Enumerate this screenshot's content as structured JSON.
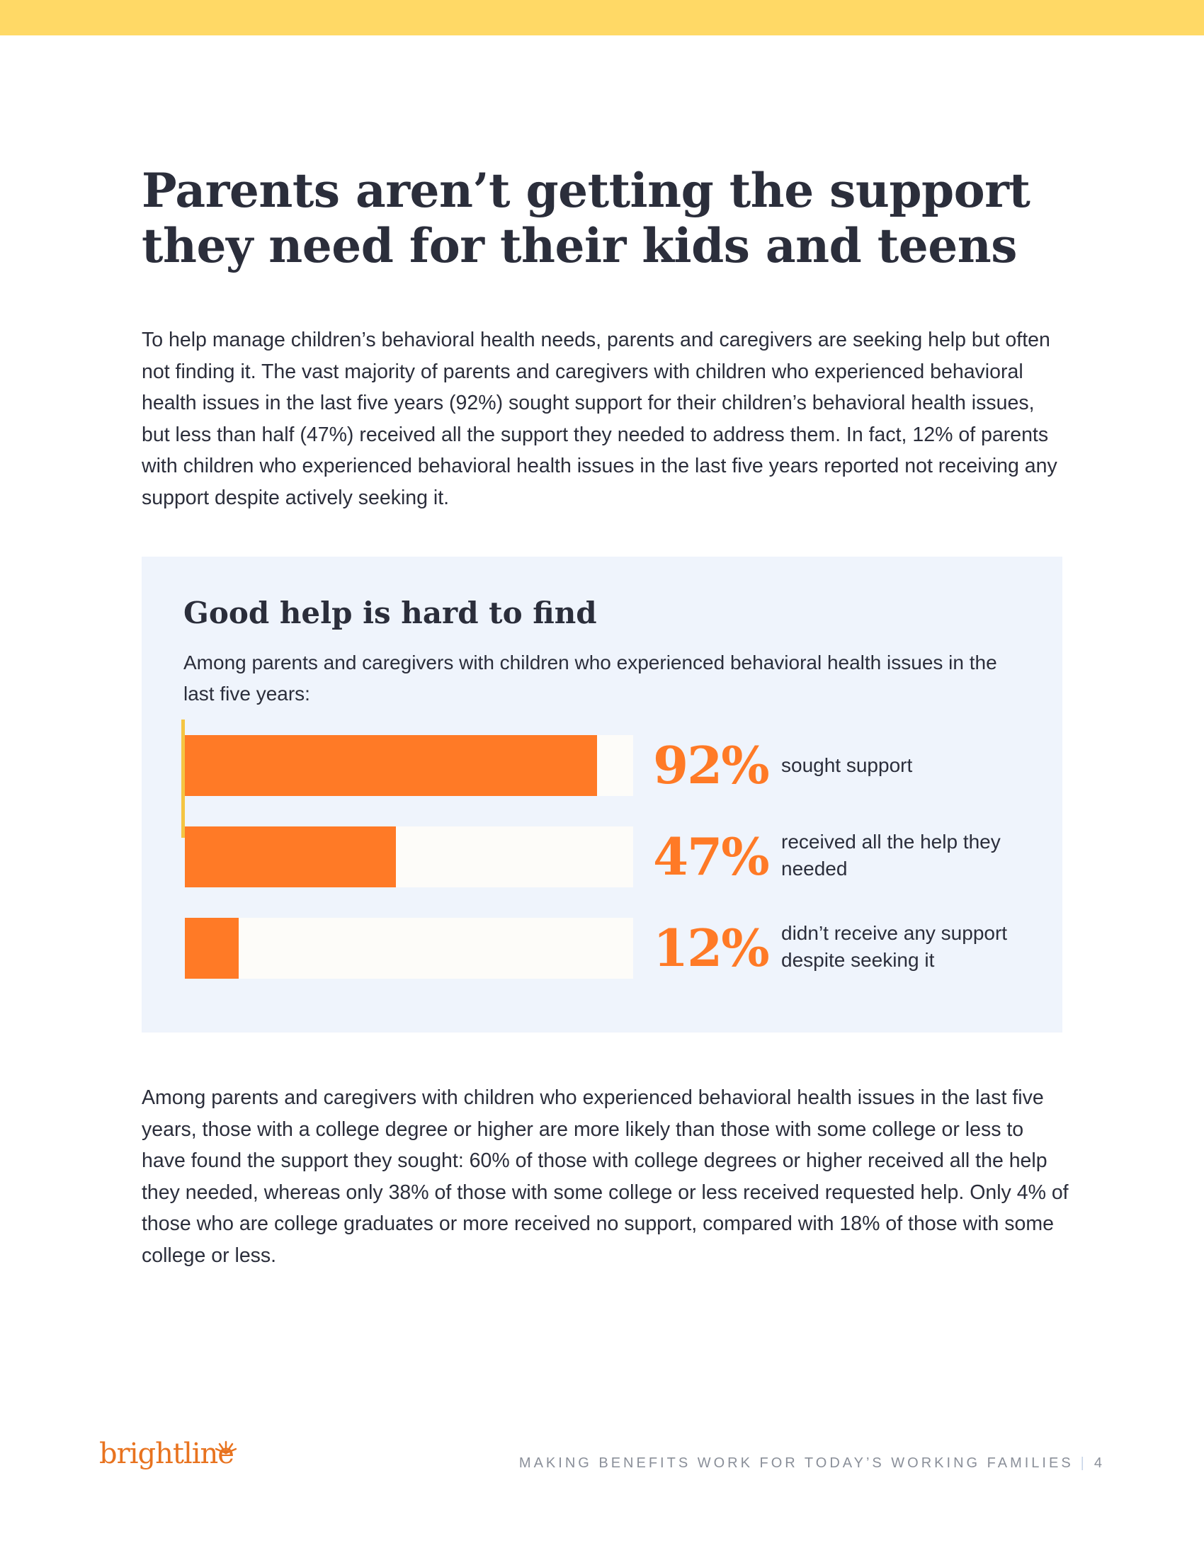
{
  "header": {
    "title_line1": "Parents aren’t getting the support",
    "title_line2": "they need for their kids and teens"
  },
  "intro": "To help manage children’s behavioral health needs, parents and caregivers are seeking help but often not finding it. The vast majority of parents and caregivers with children who experienced behavioral health issues in the last five years (92%) sought support for their children’s behavioral health issues, but less than half (47%) received all the support they needed to address them. In fact, 12% of parents with children who experienced behavioral health issues in the last five years reported not receiving any support despite actively seeking it.",
  "colors": {
    "accent": "#ff7a26",
    "top_bar": "#ffd966",
    "panel": "#eff4fc",
    "text": "#2b2e3b"
  },
  "chart_data": {
    "type": "bar",
    "orientation": "horizontal",
    "title": "Good help is hard to find",
    "subtitle": "Among parents and caregivers with children who experienced behavioral health issues in the last five years:",
    "xlim": [
      0,
      100
    ],
    "grid": false,
    "bars": [
      {
        "value": 92,
        "value_label": "92%",
        "label": "sought support"
      },
      {
        "value": 47,
        "value_label": "47%",
        "label": "received all the help they needed"
      },
      {
        "value": 12,
        "value_label": "12%",
        "label": "didn’t receive any support despite seeking it"
      }
    ]
  },
  "body": "Among parents and caregivers with children who experienced behavioral health issues in the last five years, those with a college degree or higher are more likely than those with some college or less to have found the support they sought: 60% of those with college degrees or higher received all the help they needed, whereas only 38% of those with  some college or less received requested help. Only 4% of those who are college graduates or more received no support, compared with 18% of those with some college or less.",
  "footer": {
    "logo_text": "brightline",
    "tagline": "MAKING BENEFITS WORK FOR TODAY’S WORKING FAMILIES",
    "separator": "|",
    "page_number": "4"
  }
}
